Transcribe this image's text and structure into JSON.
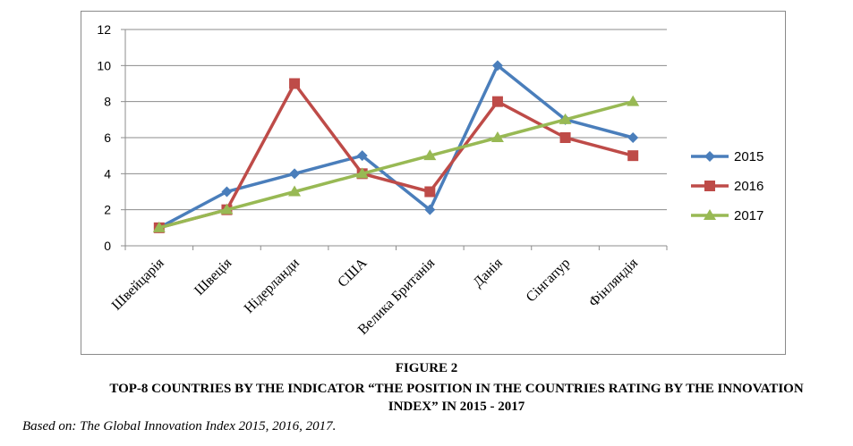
{
  "figure": {
    "label": "FIGURE 2",
    "caption": "TOP-8 COUNTRIES BY THE INDICATOR “THE POSITION IN THE COUNTRIES RATING BY THE INNOVATION INDEX” IN 2015 - 2017",
    "source": "Based on:  The Global Innovation Index 2015, 2016, 2017."
  },
  "chart_data": {
    "type": "line",
    "categories": [
      "Швейцарія",
      "Швеція",
      "Нідерланди",
      "США",
      "Велика Британія",
      "Данія",
      "Сінгапур",
      "Фінляндія"
    ],
    "series": [
      {
        "name": "2015",
        "values": [
          1,
          3,
          4,
          5,
          2,
          10,
          7,
          6
        ],
        "color": "#4a7ebb",
        "marker": "diamond"
      },
      {
        "name": "2016",
        "values": [
          1,
          2,
          9,
          4,
          3,
          8,
          6,
          5
        ],
        "color": "#be4b48",
        "marker": "square"
      },
      {
        "name": "2017",
        "values": [
          1,
          2,
          3,
          4,
          5,
          6,
          7,
          8
        ],
        "color": "#98b954",
        "marker": "triangle"
      }
    ],
    "ylim": [
      0,
      12
    ],
    "yticks": [
      0,
      2,
      4,
      6,
      8,
      10,
      12
    ],
    "grid": "horizontal",
    "legend": "right"
  }
}
